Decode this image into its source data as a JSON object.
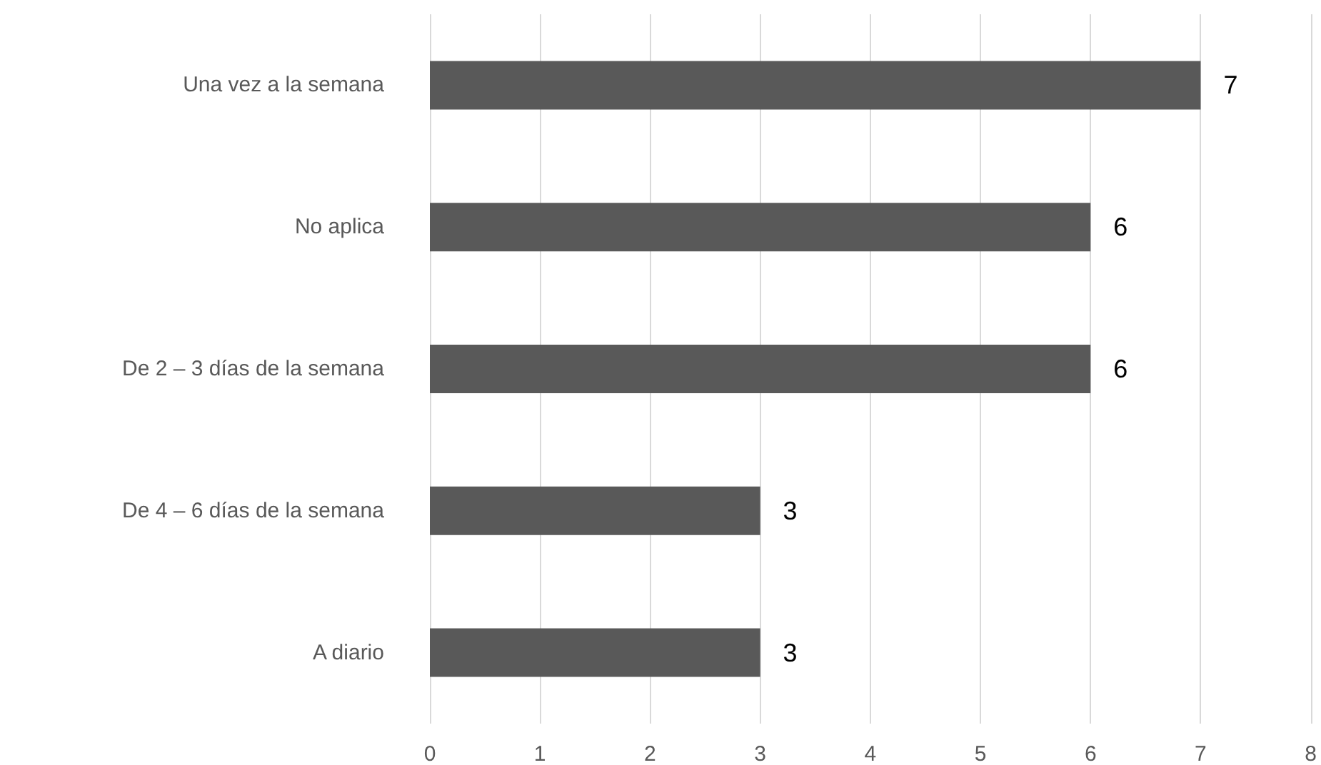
{
  "chart_data": {
    "type": "bar",
    "orientation": "horizontal",
    "categories": [
      "Una vez a la semana",
      "No aplica",
      "De 2 – 3 días de la semana",
      "De 4 – 6 días de la semana",
      "A diario"
    ],
    "values": [
      7,
      6,
      6,
      3,
      3
    ],
    "color": "#595959",
    "xlim": [
      0,
      8
    ],
    "xticks": [
      0,
      1,
      2,
      3,
      4,
      5,
      6,
      7,
      8
    ],
    "grid": "x",
    "data_labels": true
  }
}
